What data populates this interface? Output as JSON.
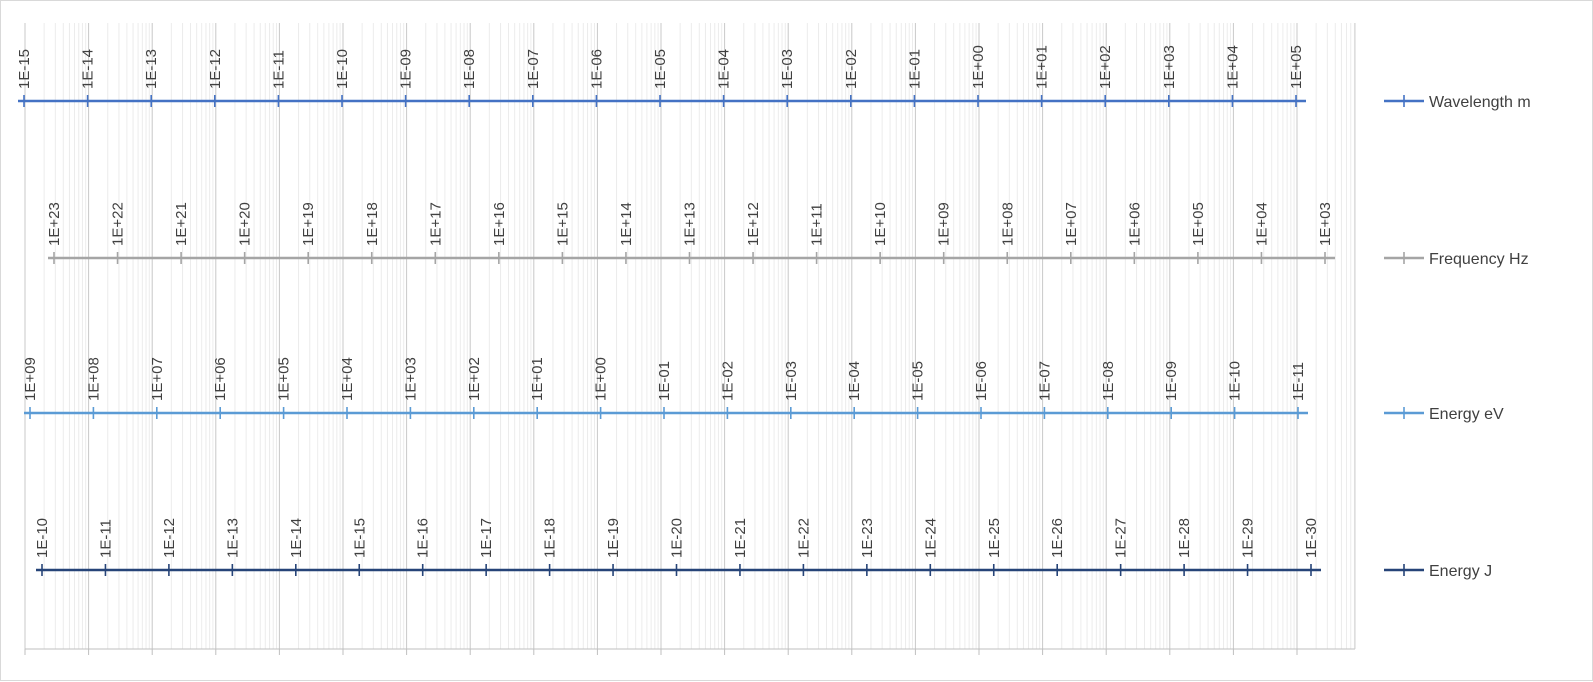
{
  "chart_data": {
    "type": "line",
    "title": "",
    "xlabel": "",
    "ylabel": "",
    "grid": true,
    "log_scale": true,
    "legend_position": "right",
    "series": [
      {
        "name": "Wavelength m",
        "color": "#4472c4",
        "labels": [
          "1E-15",
          "1E-14",
          "1E-13",
          "1E-12",
          "1E-11",
          "1E-10",
          "1E-09",
          "1E-08",
          "1E-07",
          "1E-06",
          "1E-05",
          "1E-04",
          "1E-03",
          "1E-02",
          "1E-01",
          "1E+00",
          "1E+01",
          "1E+02",
          "1E+03",
          "1E+04",
          "1E+05"
        ]
      },
      {
        "name": "Frequency Hz",
        "color": "#a5a5a5",
        "labels": [
          "1E+23",
          "1E+22",
          "1E+21",
          "1E+20",
          "1E+19",
          "1E+18",
          "1E+17",
          "1E+16",
          "1E+15",
          "1E+14",
          "1E+13",
          "1E+12",
          "1E+11",
          "1E+10",
          "1E+09",
          "1E+08",
          "1E+07",
          "1E+06",
          "1E+05",
          "1E+04",
          "1E+03"
        ]
      },
      {
        "name": "Energy eV",
        "color": "#5b9bd5",
        "labels": [
          "1E+09",
          "1E+08",
          "1E+07",
          "1E+06",
          "1E+05",
          "1E+04",
          "1E+03",
          "1E+02",
          "1E+01",
          "1E+00",
          "1E-01",
          "1E-02",
          "1E-03",
          "1E-04",
          "1E-05",
          "1E-06",
          "1E-07",
          "1E-08",
          "1E-09",
          "1E-10",
          "1E-11"
        ]
      },
      {
        "name": "Energy J",
        "color": "#264478",
        "labels": [
          "1E-10",
          "1E-11",
          "1E-12",
          "1E-13",
          "1E-14",
          "1E-15",
          "1E-16",
          "1E-17",
          "1E-18",
          "1E-19",
          "1E-20",
          "1E-21",
          "1E-22",
          "1E-23",
          "1E-24",
          "1E-25",
          "1E-26",
          "1E-27",
          "1E-28",
          "1E-29",
          "1E-30"
        ]
      }
    ]
  }
}
